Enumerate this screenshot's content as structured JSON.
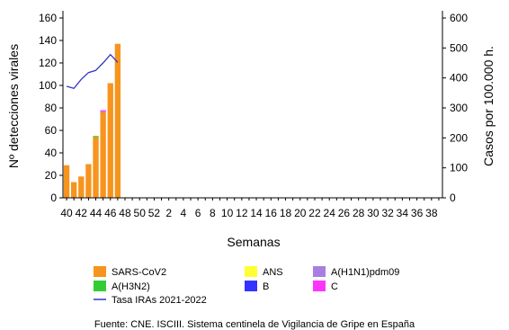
{
  "chart_data": {
    "type": "bar",
    "xlabel": "Semanas",
    "ylabel_left": "Nº detecciones virales",
    "ylabel_right": "Casos por 100.000 h.",
    "ylim_left": [
      0,
      160
    ],
    "ylim_right": [
      0,
      600
    ],
    "yticks_left": [
      "0",
      "20",
      "40",
      "60",
      "80",
      "100",
      "120",
      "140",
      "160"
    ],
    "yticks_right": [
      "0",
      "100",
      "200",
      "300",
      "400",
      "500",
      "600"
    ],
    "weeks": [
      "40",
      "41",
      "42",
      "43",
      "44",
      "45",
      "46",
      "47",
      "48",
      "49",
      "50",
      "51",
      "52",
      "1",
      "2",
      "3",
      "4",
      "5",
      "6",
      "7",
      "8",
      "9",
      "10",
      "11",
      "12",
      "13",
      "14",
      "15",
      "16",
      "17",
      "18",
      "19",
      "20",
      "21",
      "22",
      "23",
      "24",
      "25",
      "26",
      "27",
      "28",
      "29",
      "30",
      "31",
      "32",
      "33",
      "34",
      "35",
      "36",
      "37",
      "38",
      "39"
    ],
    "x_tick_labels": [
      "40",
      "42",
      "44",
      "46",
      "48",
      "50",
      "52",
      "2",
      "4",
      "6",
      "8",
      "10",
      "12",
      "14",
      "16",
      "18",
      "20",
      "22",
      "24",
      "26",
      "28",
      "30",
      "32",
      "34",
      "36",
      "38"
    ],
    "series": [
      {
        "name": "SARS-CoV2",
        "color": "#f7941d",
        "values": [
          29,
          14,
          19,
          30,
          54,
          76,
          102,
          137
        ]
      },
      {
        "name": "ANS",
        "color": "#ffff33",
        "values": [
          0,
          0,
          0,
          0,
          0,
          0,
          0,
          0
        ]
      },
      {
        "name": "A(H1N1)pdm09",
        "color": "#a87fe0",
        "values": [
          0,
          0,
          0,
          0,
          0,
          1,
          0,
          0
        ]
      },
      {
        "name": "A(H3N2)",
        "color": "#33cc33",
        "values": [
          0,
          0,
          0,
          0,
          1,
          0,
          0,
          0
        ]
      },
      {
        "name": "B",
        "color": "#3333ff",
        "values": [
          0,
          0,
          0,
          0,
          0,
          0,
          0,
          0
        ]
      },
      {
        "name": "C",
        "color": "#ff33ff",
        "values": [
          0,
          0,
          0,
          0,
          0,
          1,
          0,
          0
        ]
      }
    ],
    "line_series": {
      "name": "Tasa IRAs 2021-2022",
      "color": "#3333cc",
      "axis": "right",
      "x": [
        40,
        41,
        42,
        43,
        44,
        45,
        46,
        47
      ],
      "values": [
        372,
        365,
        395,
        418,
        425,
        450,
        478,
        452
      ]
    },
    "legend": [
      {
        "label": "SARS-CoV2",
        "color": "#f7941d",
        "kind": "box"
      },
      {
        "label": "ANS",
        "color": "#ffff33",
        "kind": "box"
      },
      {
        "label": "A(H1N1)pdm09",
        "color": "#a87fe0",
        "kind": "box"
      },
      {
        "label": "A(H3N2)",
        "color": "#33cc33",
        "kind": "box"
      },
      {
        "label": "B",
        "color": "#3333ff",
        "kind": "box"
      },
      {
        "label": "C",
        "color": "#ff33ff",
        "kind": "box"
      },
      {
        "label": "Tasa IRAs 2021-2022",
        "color": "#3333cc",
        "kind": "line"
      }
    ],
    "source": "Fuente: CNE. ISCIII. Sistema centinela de Vigilancia de Gripe en España"
  }
}
